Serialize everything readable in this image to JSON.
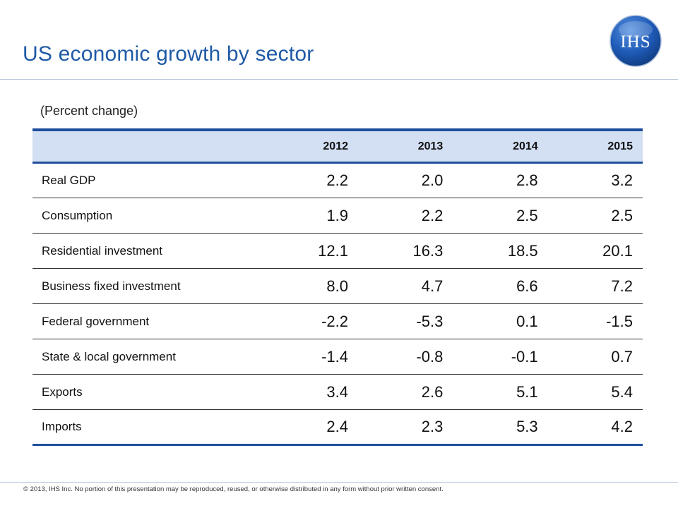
{
  "header": {
    "title": "US economic growth by sector",
    "logo_text": "IHS"
  },
  "subtitle": "(Percent change)",
  "table": {
    "columns": [
      "",
      "2012",
      "2013",
      "2014",
      "2015"
    ],
    "rows": [
      {
        "label": "Real GDP",
        "values": [
          "2.2",
          "2.0",
          "2.8",
          "3.2"
        ]
      },
      {
        "label": "Consumption",
        "values": [
          "1.9",
          "2.2",
          "2.5",
          "2.5"
        ]
      },
      {
        "label": "Residential investment",
        "values": [
          "12.1",
          "16.3",
          "18.5",
          "20.1"
        ]
      },
      {
        "label": "Business fixed investment",
        "values": [
          "8.0",
          "4.7",
          "6.6",
          "7.2"
        ]
      },
      {
        "label": "Federal government",
        "values": [
          "-2.2",
          "-5.3",
          "0.1",
          "-1.5"
        ]
      },
      {
        "label": "State & local government",
        "values": [
          "-1.4",
          "-0.8",
          "-0.1",
          "0.7"
        ]
      },
      {
        "label": "Exports",
        "values": [
          "3.4",
          "2.6",
          "5.1",
          "5.4"
        ]
      },
      {
        "label": "Imports",
        "values": [
          "2.4",
          "2.3",
          "5.3",
          "4.2"
        ]
      }
    ]
  },
  "footer": {
    "copyright": "© 2013, IHS Inc. No portion of this presentation may be reproduced, reused, or otherwise distributed in any form without prior written consent."
  },
  "colors": {
    "title": "#1f5aa6",
    "header_fill": "#d3dff3",
    "rule": "#1f4e9c",
    "logo": "#1a57b0"
  }
}
